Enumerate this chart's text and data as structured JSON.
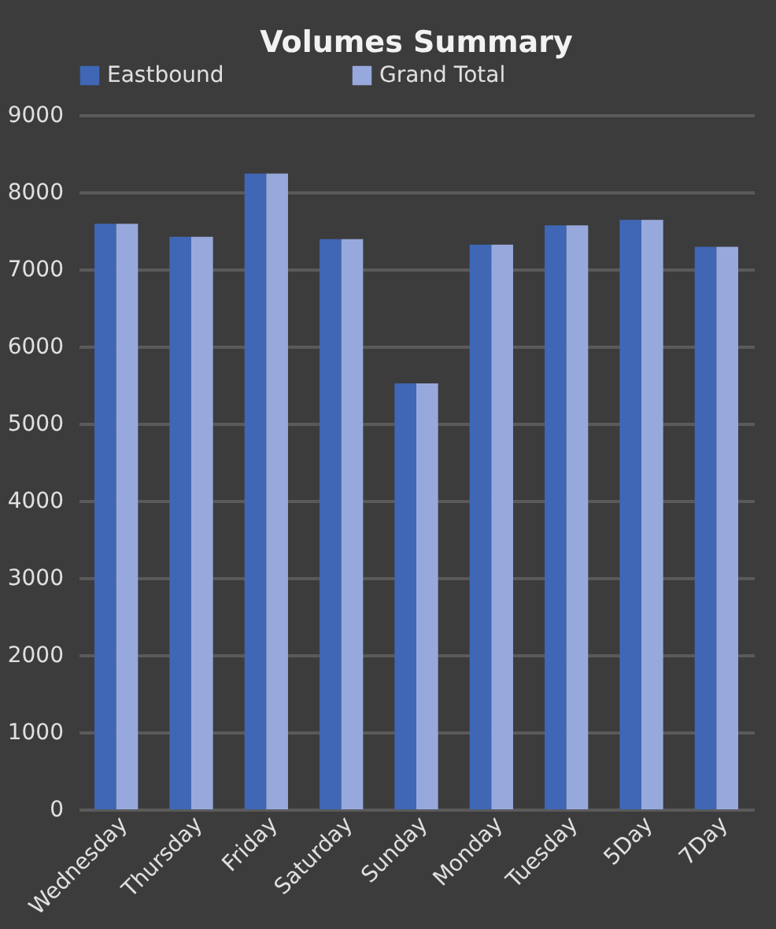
{
  "chart_data": {
    "type": "bar",
    "title": "Volumes Summary",
    "categories": [
      "Wednesday",
      "Thursday",
      "Friday",
      "Saturday",
      "Sunday",
      "Monday",
      "Tuesday",
      "5Day",
      "7Day"
    ],
    "series": [
      {
        "name": "Eastbound",
        "color": "#3f67b5",
        "values": [
          7590,
          7420,
          8240,
          7390,
          5520,
          7320,
          7570,
          7640,
          7290
        ]
      },
      {
        "name": "Grand Total",
        "color": "#97a9dc",
        "values": [
          7590,
          7420,
          8240,
          7390,
          5520,
          7320,
          7570,
          7640,
          7290
        ]
      }
    ],
    "ylim": [
      0,
      9000
    ],
    "yticks": [
      0,
      1000,
      2000,
      3000,
      4000,
      5000,
      6000,
      7000,
      8000,
      9000
    ],
    "grid": "y",
    "legend": "top"
  }
}
